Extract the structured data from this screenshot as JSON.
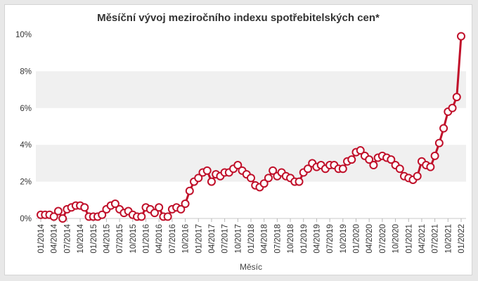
{
  "chart_data": {
    "type": "line",
    "title": "Měsíční vývoj meziročního indexu spotřebitelských cen*",
    "xlabel": "Měsíc",
    "ylabel": "",
    "ylim": [
      0,
      10
    ],
    "yticks": [
      "0%",
      "2%",
      "4%",
      "6%",
      "8%",
      "10%"
    ],
    "xtick_labels": [
      "01/2014",
      "04/2014",
      "07/2014",
      "10/2014",
      "01/2015",
      "04/2015",
      "07/2015",
      "10/2015",
      "01/2016",
      "04/2016",
      "07/2016",
      "10/2016",
      "01/2017",
      "04/2017",
      "07/2017",
      "10/2017",
      "01/2018",
      "04/2018",
      "07/2018",
      "10/2018",
      "01/2019",
      "04/2019",
      "07/2019",
      "10/2019",
      "01/2020",
      "04/2020",
      "07/2020",
      "10/2020",
      "01/2021",
      "04/2021",
      "07/2021",
      "10/2021",
      "01/2022"
    ],
    "grid": "alternating horizontal bands",
    "line_color": "#c0102a",
    "band_color": "#f0f0f0",
    "series": [
      {
        "name": "",
        "values": [
          0.2,
          0.2,
          0.2,
          0.1,
          0.4,
          0.0,
          0.5,
          0.6,
          0.7,
          0.7,
          0.6,
          0.1,
          0.1,
          0.1,
          0.2,
          0.5,
          0.7,
          0.8,
          0.5,
          0.3,
          0.4,
          0.2,
          0.1,
          0.1,
          0.6,
          0.5,
          0.3,
          0.6,
          0.1,
          0.1,
          0.5,
          0.6,
          0.5,
          0.8,
          1.5,
          2.0,
          2.2,
          2.5,
          2.6,
          2.0,
          2.4,
          2.3,
          2.5,
          2.5,
          2.7,
          2.9,
          2.6,
          2.4,
          2.2,
          1.8,
          1.7,
          1.9,
          2.2,
          2.6,
          2.3,
          2.5,
          2.3,
          2.2,
          2.0,
          2.0,
          2.5,
          2.7,
          3.0,
          2.8,
          2.9,
          2.7,
          2.9,
          2.9,
          2.7,
          2.7,
          3.1,
          3.2,
          3.6,
          3.7,
          3.4,
          3.2,
          2.9,
          3.3,
          3.4,
          3.3,
          3.2,
          2.9,
          2.7,
          2.3,
          2.2,
          2.1,
          2.3,
          3.1,
          2.9,
          2.8,
          3.4,
          4.1,
          4.9,
          5.8,
          6.0,
          6.6,
          9.9
        ]
      }
    ]
  }
}
